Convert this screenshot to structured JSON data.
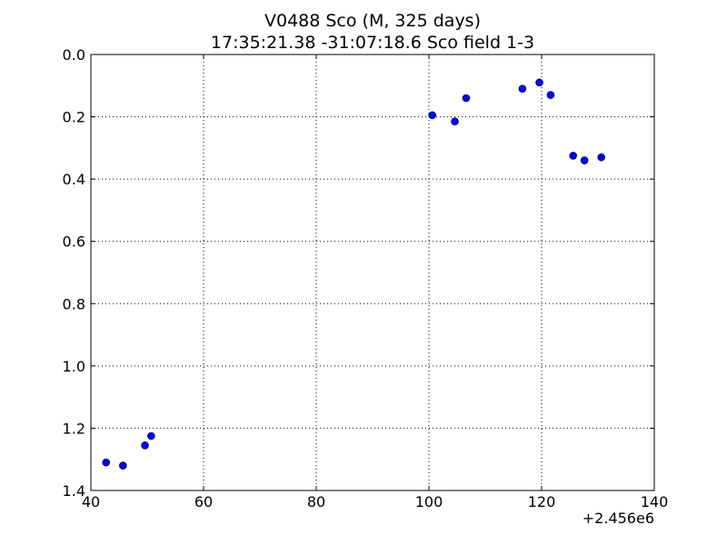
{
  "chart_data": {
    "type": "scatter",
    "title": "V0488 Sco  (M, 325 days)",
    "subtitle": "17:35:21.38 -31:07:18.6 Sco field 1-3",
    "xlabel": "",
    "ylabel": "",
    "x_offset_label": "+2.456e6",
    "xlim": [
      40,
      140
    ],
    "ylim": [
      0.0,
      1.4
    ],
    "y_inverted": true,
    "xticks": [
      40,
      60,
      80,
      100,
      120,
      140
    ],
    "xtick_labels": [
      "40",
      "60",
      "80",
      "100",
      "120",
      "140"
    ],
    "yticks": [
      0.0,
      0.2,
      0.4,
      0.6,
      0.8,
      1.0,
      1.2,
      1.4
    ],
    "ytick_labels": [
      "0.0",
      "0.2",
      "0.4",
      "0.6",
      "0.8",
      "1.0",
      "1.2",
      "1.4"
    ],
    "grid": true,
    "legend": "none",
    "marker_color": "#0000ff",
    "series": [
      {
        "x": [
          42.7,
          45.7,
          49.6,
          50.7,
          100.6,
          104.6,
          106.6,
          116.6,
          119.6,
          121.6,
          125.6,
          127.6,
          130.6
        ],
        "y": [
          1.31,
          1.32,
          1.255,
          1.225,
          0.195,
          0.215,
          0.14,
          0.11,
          0.09,
          0.13,
          0.325,
          0.34,
          0.33
        ]
      }
    ]
  }
}
